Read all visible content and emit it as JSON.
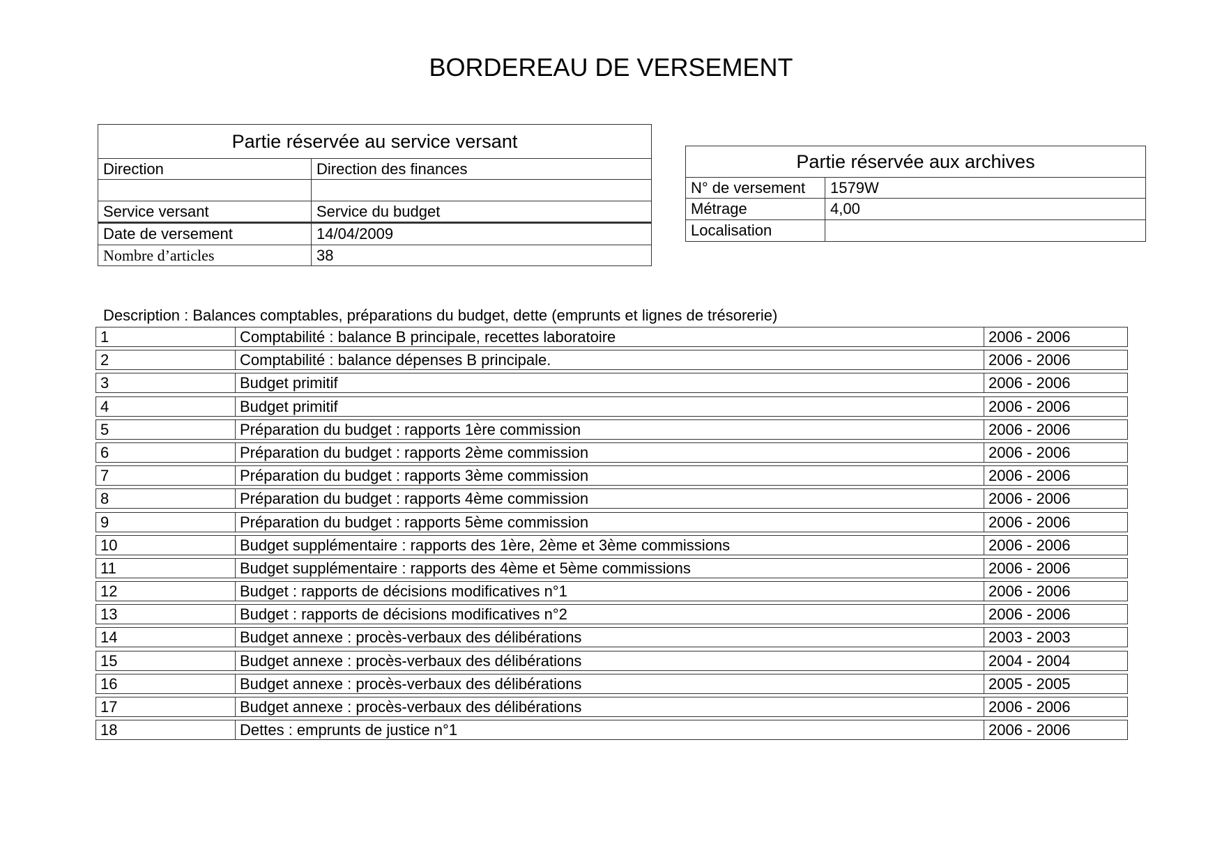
{
  "title": "BORDEREAU DE VERSEMENT",
  "service_versant": {
    "header": "Partie réservée au service versant",
    "rows": [
      {
        "label": "Direction",
        "value": "Direction des finances"
      },
      {
        "label": "",
        "value": ""
      },
      {
        "label": "Service versant",
        "value": "Service du budget"
      },
      {
        "label": "Date de versement",
        "value": "14/04/2009"
      },
      {
        "label": "Nombre d’articles",
        "value": "38"
      }
    ]
  },
  "archives": {
    "header": "Partie réservée aux archives",
    "rows": [
      {
        "label": "N° de versement",
        "value": "1579W"
      },
      {
        "label": "Métrage",
        "value": "4,00"
      },
      {
        "label": "Localisation",
        "value": ""
      }
    ]
  },
  "description": "Description : Balances comptables, préparations du budget, dette (emprunts et lignes de trésorerie)",
  "items": [
    {
      "num": "1",
      "label": "Comptabilité : balance B principale, recettes laboratoire",
      "dates": "2006 - 2006"
    },
    {
      "num": "2",
      "label": "Comptabilité : balance dépenses B principale.",
      "dates": "2006 - 2006"
    },
    {
      "num": "3",
      "label": "Budget primitif",
      "dates": "2006 - 2006"
    },
    {
      "num": "4",
      "label": "Budget primitif",
      "dates": "2006 - 2006"
    },
    {
      "num": "5",
      "label": "Préparation du budget : rapports 1ère commission",
      "dates": "2006 - 2006"
    },
    {
      "num": "6",
      "label": "Préparation du budget : rapports 2ème commission",
      "dates": "2006 - 2006"
    },
    {
      "num": "7",
      "label": "Préparation du budget : rapports 3ème commission",
      "dates": "2006 - 2006"
    },
    {
      "num": "8",
      "label": "Préparation du budget : rapports 4ème commission",
      "dates": "2006 - 2006"
    },
    {
      "num": "9",
      "label": "Préparation du budget : rapports 5ème commission",
      "dates": "2006 - 2006"
    },
    {
      "num": "10",
      "label": "Budget supplémentaire : rapports des 1ère, 2ème et 3ème commissions",
      "dates": "2006 - 2006"
    },
    {
      "num": "11",
      "label": "Budget supplémentaire : rapports des 4ème et 5ème commissions",
      "dates": "2006 - 2006"
    },
    {
      "num": "12",
      "label": "Budget : rapports de décisions modificatives n°1",
      "dates": "2006 - 2006"
    },
    {
      "num": "13",
      "label": "Budget : rapports de décisions modificatives n°2",
      "dates": "2006 - 2006"
    },
    {
      "num": "14",
      "label": "Budget annexe : procès-verbaux des délibérations",
      "dates": "2003 - 2003"
    },
    {
      "num": "15",
      "label": "Budget annexe : procès-verbaux des délibérations",
      "dates": "2004 - 2004"
    },
    {
      "num": "16",
      "label": "Budget annexe : procès-verbaux des délibérations",
      "dates": "2005 - 2005"
    },
    {
      "num": "17",
      "label": "Budget annexe : procès-verbaux des délibérations",
      "dates": "2006 - 2006"
    },
    {
      "num": "18",
      "label": "Dettes : emprunts de justice n°1",
      "dates": "2006 - 2006"
    }
  ]
}
